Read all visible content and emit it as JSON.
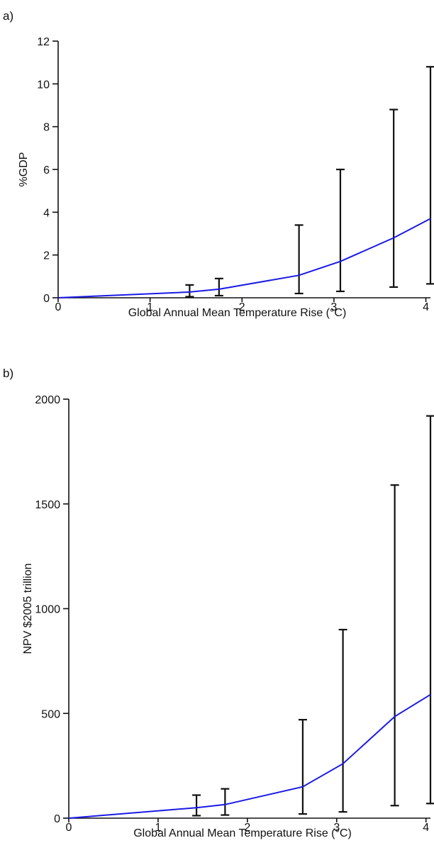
{
  "chart_data": [
    {
      "type": "line",
      "panel_label": "a)",
      "xlabel": "Global Annual Mean Temperature Rise (°C)",
      "ylabel": "%GDP",
      "xlim": [
        0,
        4.05
      ],
      "ylim": [
        0,
        12
      ],
      "xticks": [
        0,
        1,
        2,
        3,
        4
      ],
      "yticks": [
        0,
        2,
        4,
        6,
        8,
        10,
        12
      ],
      "grid": false,
      "series": [
        {
          "color": "#1a1ae6",
          "points": [
            [
              0,
              0
            ],
            [
              1.43,
              0.27
            ],
            [
              1.75,
              0.4
            ],
            [
              2.62,
              1.05
            ],
            [
              3.07,
              1.7
            ],
            [
              3.65,
              2.8
            ],
            [
              4.05,
              3.7
            ]
          ]
        }
      ],
      "error_bars": [
        {
          "x": 1.43,
          "low": 0.05,
          "high": 0.6
        },
        {
          "x": 1.75,
          "low": 0.1,
          "high": 0.9
        },
        {
          "x": 2.62,
          "low": 0.2,
          "high": 3.4
        },
        {
          "x": 3.07,
          "low": 0.3,
          "high": 6.0
        },
        {
          "x": 3.65,
          "low": 0.5,
          "high": 8.8
        },
        {
          "x": 4.05,
          "low": 0.65,
          "high": 10.8
        }
      ]
    },
    {
      "type": "line",
      "panel_label": "b)",
      "xlabel": "Global Annual Mean Temperature Rise (°C)",
      "ylabel": "NPV $2005 trillion",
      "xlim": [
        0,
        4.05
      ],
      "ylim": [
        0,
        2000
      ],
      "xticks": [
        0,
        1,
        2,
        3,
        4
      ],
      "yticks": [
        0,
        500,
        1000,
        1500,
        2000
      ],
      "grid": false,
      "series": [
        {
          "color": "#1a1ae6",
          "points": [
            [
              0,
              0
            ],
            [
              1.43,
              50
            ],
            [
              1.75,
              65
            ],
            [
              2.62,
              150
            ],
            [
              3.07,
              260
            ],
            [
              3.65,
              485
            ],
            [
              4.05,
              590
            ]
          ]
        }
      ],
      "error_bars": [
        {
          "x": 1.43,
          "low": 12,
          "high": 110
        },
        {
          "x": 1.75,
          "low": 15,
          "high": 140
        },
        {
          "x": 2.62,
          "low": 20,
          "high": 470
        },
        {
          "x": 3.07,
          "low": 30,
          "high": 900
        },
        {
          "x": 3.65,
          "low": 60,
          "high": 1590
        },
        {
          "x": 4.05,
          "low": 70,
          "high": 1920
        }
      ]
    }
  ]
}
